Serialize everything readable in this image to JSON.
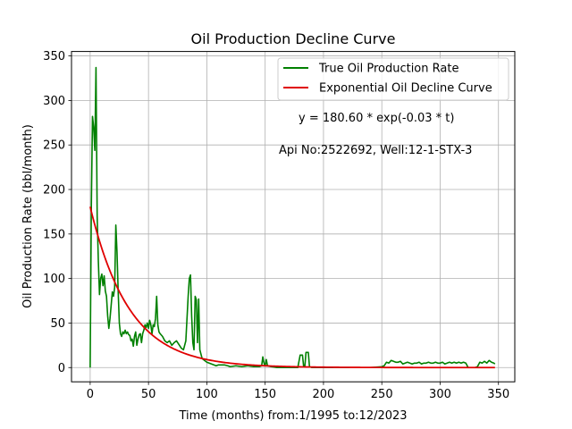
{
  "chart_data": {
    "type": "line",
    "title": "Oil Production Decline Curve",
    "xlabel": "Time (months) from:1/1995 to:12/2023",
    "ylabel": "Oil Production Rate (bbl/month)",
    "xlim": [
      -16,
      364
    ],
    "ylim": [
      -16,
      355
    ],
    "xticks": [
      0,
      50,
      100,
      150,
      200,
      250,
      300,
      350
    ],
    "yticks": [
      0,
      50,
      100,
      150,
      200,
      250,
      300,
      350
    ],
    "grid": true,
    "legend_position": "upper-right",
    "series": [
      {
        "name": "True Oil Production Rate",
        "color": "#008000",
        "points": [
          [
            0,
            0
          ],
          [
            1,
            180
          ],
          [
            2,
            282
          ],
          [
            3,
            270
          ],
          [
            4,
            244
          ],
          [
            5,
            337
          ],
          [
            6,
            170
          ],
          [
            7,
            120
          ],
          [
            8,
            82
          ],
          [
            9,
            100
          ],
          [
            10,
            105
          ],
          [
            11,
            92
          ],
          [
            12,
            103
          ],
          [
            13,
            86
          ],
          [
            14,
            80
          ],
          [
            15,
            58
          ],
          [
            16,
            44
          ],
          [
            17,
            55
          ],
          [
            18,
            70
          ],
          [
            19,
            85
          ],
          [
            20,
            80
          ],
          [
            21,
            90
          ],
          [
            22,
            160
          ],
          [
            23,
            130
          ],
          [
            24,
            86
          ],
          [
            25,
            50
          ],
          [
            26,
            38
          ],
          [
            27,
            35
          ],
          [
            28,
            40
          ],
          [
            29,
            38
          ],
          [
            30,
            42
          ],
          [
            31,
            38
          ],
          [
            32,
            40
          ],
          [
            33,
            37
          ],
          [
            34,
            36
          ],
          [
            35,
            30
          ],
          [
            36,
            32
          ],
          [
            37,
            24
          ],
          [
            38,
            35
          ],
          [
            39,
            40
          ],
          [
            40,
            25
          ],
          [
            41,
            32
          ],
          [
            42,
            37
          ],
          [
            43,
            38
          ],
          [
            44,
            28
          ],
          [
            45,
            38
          ],
          [
            46,
            42
          ],
          [
            47,
            48
          ],
          [
            48,
            45
          ],
          [
            49,
            50
          ],
          [
            50,
            44
          ],
          [
            51,
            53
          ],
          [
            52,
            48
          ],
          [
            53,
            38
          ],
          [
            54,
            48
          ],
          [
            55,
            46
          ],
          [
            56,
            55
          ],
          [
            57,
            80
          ],
          [
            58,
            48
          ],
          [
            59,
            40
          ],
          [
            60,
            38
          ],
          [
            62,
            35
          ],
          [
            64,
            30
          ],
          [
            66,
            28
          ],
          [
            68,
            30
          ],
          [
            70,
            25
          ],
          [
            72,
            28
          ],
          [
            74,
            30
          ],
          [
            76,
            26
          ],
          [
            78,
            22
          ],
          [
            80,
            20
          ],
          [
            82,
            30
          ],
          [
            84,
            80
          ],
          [
            85,
            100
          ],
          [
            86,
            104
          ],
          [
            87,
            58
          ],
          [
            88,
            28
          ],
          [
            89,
            20
          ],
          [
            90,
            80
          ],
          [
            91,
            76
          ],
          [
            92,
            28
          ],
          [
            93,
            77
          ],
          [
            94,
            20
          ],
          [
            95,
            15
          ],
          [
            96,
            10
          ],
          [
            98,
            8
          ],
          [
            100,
            6
          ],
          [
            102,
            5
          ],
          [
            104,
            4
          ],
          [
            106,
            3
          ],
          [
            108,
            2
          ],
          [
            110,
            3
          ],
          [
            112,
            3
          ],
          [
            115,
            3
          ],
          [
            118,
            2
          ],
          [
            120,
            1
          ],
          [
            125,
            2
          ],
          [
            130,
            1
          ],
          [
            135,
            2
          ],
          [
            140,
            1
          ],
          [
            145,
            1
          ],
          [
            147,
            2
          ],
          [
            148,
            12
          ],
          [
            149,
            5
          ],
          [
            150,
            2
          ],
          [
            151,
            9
          ],
          [
            152,
            2
          ],
          [
            155,
            1
          ],
          [
            160,
            0
          ],
          [
            170,
            0
          ],
          [
            178,
            0
          ],
          [
            180,
            14
          ],
          [
            182,
            14
          ],
          [
            183,
            1
          ],
          [
            184,
            1
          ],
          [
            185,
            17
          ],
          [
            187,
            17
          ],
          [
            188,
            1
          ],
          [
            190,
            0
          ],
          [
            200,
            0
          ],
          [
            210,
            0
          ],
          [
            220,
            0
          ],
          [
            230,
            0
          ],
          [
            240,
            0
          ],
          [
            250,
            1
          ],
          [
            252,
            2
          ],
          [
            254,
            6
          ],
          [
            256,
            5
          ],
          [
            258,
            8
          ],
          [
            260,
            7
          ],
          [
            262,
            6
          ],
          [
            264,
            6
          ],
          [
            266,
            7
          ],
          [
            268,
            4
          ],
          [
            270,
            5
          ],
          [
            272,
            6
          ],
          [
            274,
            5
          ],
          [
            276,
            4
          ],
          [
            278,
            5
          ],
          [
            280,
            5
          ],
          [
            282,
            6
          ],
          [
            284,
            4
          ],
          [
            286,
            5
          ],
          [
            288,
            5
          ],
          [
            290,
            6
          ],
          [
            292,
            5
          ],
          [
            294,
            5
          ],
          [
            296,
            6
          ],
          [
            298,
            5
          ],
          [
            300,
            5
          ],
          [
            302,
            6
          ],
          [
            304,
            4
          ],
          [
            306,
            5
          ],
          [
            308,
            6
          ],
          [
            310,
            5
          ],
          [
            312,
            6
          ],
          [
            314,
            5
          ],
          [
            316,
            6
          ],
          [
            318,
            5
          ],
          [
            320,
            6
          ],
          [
            322,
            5
          ],
          [
            324,
            0
          ],
          [
            326,
            0
          ],
          [
            328,
            0
          ],
          [
            330,
            0
          ],
          [
            332,
            1
          ],
          [
            334,
            6
          ],
          [
            336,
            5
          ],
          [
            338,
            7
          ],
          [
            340,
            5
          ],
          [
            342,
            8
          ],
          [
            344,
            6
          ],
          [
            346,
            5
          ],
          [
            347,
            4
          ]
        ]
      },
      {
        "name": "Exponential Oil Decline Curve",
        "color": "#e00000",
        "function": {
          "a": 180.6,
          "b": 0.03,
          "x_start": 0,
          "x_end": 347
        }
      }
    ],
    "annotations": [
      {
        "text": "y = 180.60 * exp(-0.03 * t)"
      },
      {
        "text": "Api No:2522692, Well:12-1-STX-3"
      }
    ]
  }
}
